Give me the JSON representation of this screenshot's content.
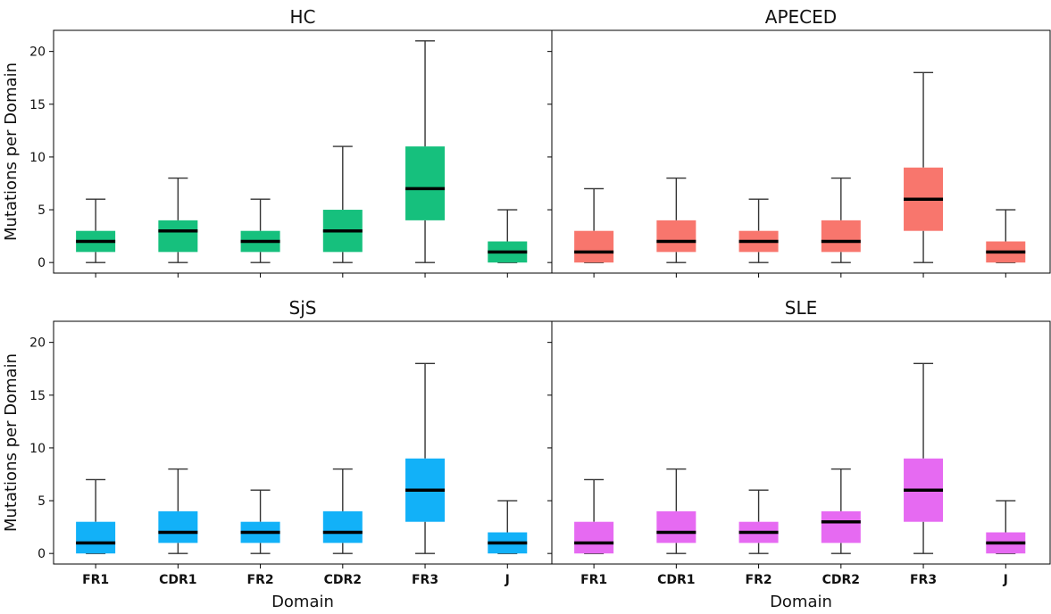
{
  "chart_data": {
    "type": "box",
    "ylabel": "Mutations per Domain",
    "xlabel": "Domain",
    "categories": [
      "FR1",
      "CDR1",
      "FR2",
      "CDR2",
      "FR3",
      "J"
    ],
    "ylim": [
      -1,
      22
    ],
    "yticks": [
      0,
      5,
      10,
      15,
      20
    ],
    "grid": false,
    "panels": [
      {
        "title": "HC",
        "color": "#16c07d",
        "boxes": [
          {
            "category": "FR1",
            "whislo": 0,
            "q1": 1,
            "med": 2,
            "q3": 3,
            "whishi": 6
          },
          {
            "category": "CDR1",
            "whislo": 0,
            "q1": 1,
            "med": 3,
            "q3": 4,
            "whishi": 8
          },
          {
            "category": "FR2",
            "whislo": 0,
            "q1": 1,
            "med": 2,
            "q3": 3,
            "whishi": 6
          },
          {
            "category": "CDR2",
            "whislo": 0,
            "q1": 1,
            "med": 3,
            "q3": 5,
            "whishi": 11
          },
          {
            "category": "FR3",
            "whislo": 0,
            "q1": 4,
            "med": 7,
            "q3": 11,
            "whishi": 21
          },
          {
            "category": "J",
            "whislo": 0,
            "q1": 0,
            "med": 1,
            "q3": 2,
            "whishi": 5
          }
        ]
      },
      {
        "title": "APECED",
        "color": "#f8766d",
        "boxes": [
          {
            "category": "FR1",
            "whislo": 0,
            "q1": 0,
            "med": 1,
            "q3": 3,
            "whishi": 7
          },
          {
            "category": "CDR1",
            "whislo": 0,
            "q1": 1,
            "med": 2,
            "q3": 4,
            "whishi": 8
          },
          {
            "category": "FR2",
            "whislo": 0,
            "q1": 1,
            "med": 2,
            "q3": 3,
            "whishi": 6
          },
          {
            "category": "CDR2",
            "whislo": 0,
            "q1": 1,
            "med": 2,
            "q3": 4,
            "whishi": 8
          },
          {
            "category": "FR3",
            "whislo": 0,
            "q1": 3,
            "med": 6,
            "q3": 9,
            "whishi": 18
          },
          {
            "category": "J",
            "whislo": 0,
            "q1": 0,
            "med": 1,
            "q3": 2,
            "whishi": 5
          }
        ]
      },
      {
        "title": "SjS",
        "color": "#12b1f8",
        "boxes": [
          {
            "category": "FR1",
            "whislo": 0,
            "q1": 0,
            "med": 1,
            "q3": 3,
            "whishi": 7
          },
          {
            "category": "CDR1",
            "whislo": 0,
            "q1": 1,
            "med": 2,
            "q3": 4,
            "whishi": 8
          },
          {
            "category": "FR2",
            "whislo": 0,
            "q1": 1,
            "med": 2,
            "q3": 3,
            "whishi": 6
          },
          {
            "category": "CDR2",
            "whislo": 0,
            "q1": 1,
            "med": 2,
            "q3": 4,
            "whishi": 8
          },
          {
            "category": "FR3",
            "whislo": 0,
            "q1": 3,
            "med": 6,
            "q3": 9,
            "whishi": 18
          },
          {
            "category": "J",
            "whislo": 0,
            "q1": 0,
            "med": 1,
            "q3": 2,
            "whishi": 5
          }
        ]
      },
      {
        "title": "SLE",
        "color": "#e66af2",
        "boxes": [
          {
            "category": "FR1",
            "whislo": 0,
            "q1": 0,
            "med": 1,
            "q3": 3,
            "whishi": 7
          },
          {
            "category": "CDR1",
            "whislo": 0,
            "q1": 1,
            "med": 2,
            "q3": 4,
            "whishi": 8
          },
          {
            "category": "FR2",
            "whislo": 0,
            "q1": 1,
            "med": 2,
            "q3": 3,
            "whishi": 6
          },
          {
            "category": "CDR2",
            "whislo": 0,
            "q1": 1,
            "med": 3,
            "q3": 4,
            "whishi": 8
          },
          {
            "category": "FR3",
            "whislo": 0,
            "q1": 3,
            "med": 6,
            "q3": 9,
            "whishi": 18
          },
          {
            "category": "J",
            "whislo": 0,
            "q1": 0,
            "med": 1,
            "q3": 2,
            "whishi": 5
          }
        ]
      }
    ]
  }
}
